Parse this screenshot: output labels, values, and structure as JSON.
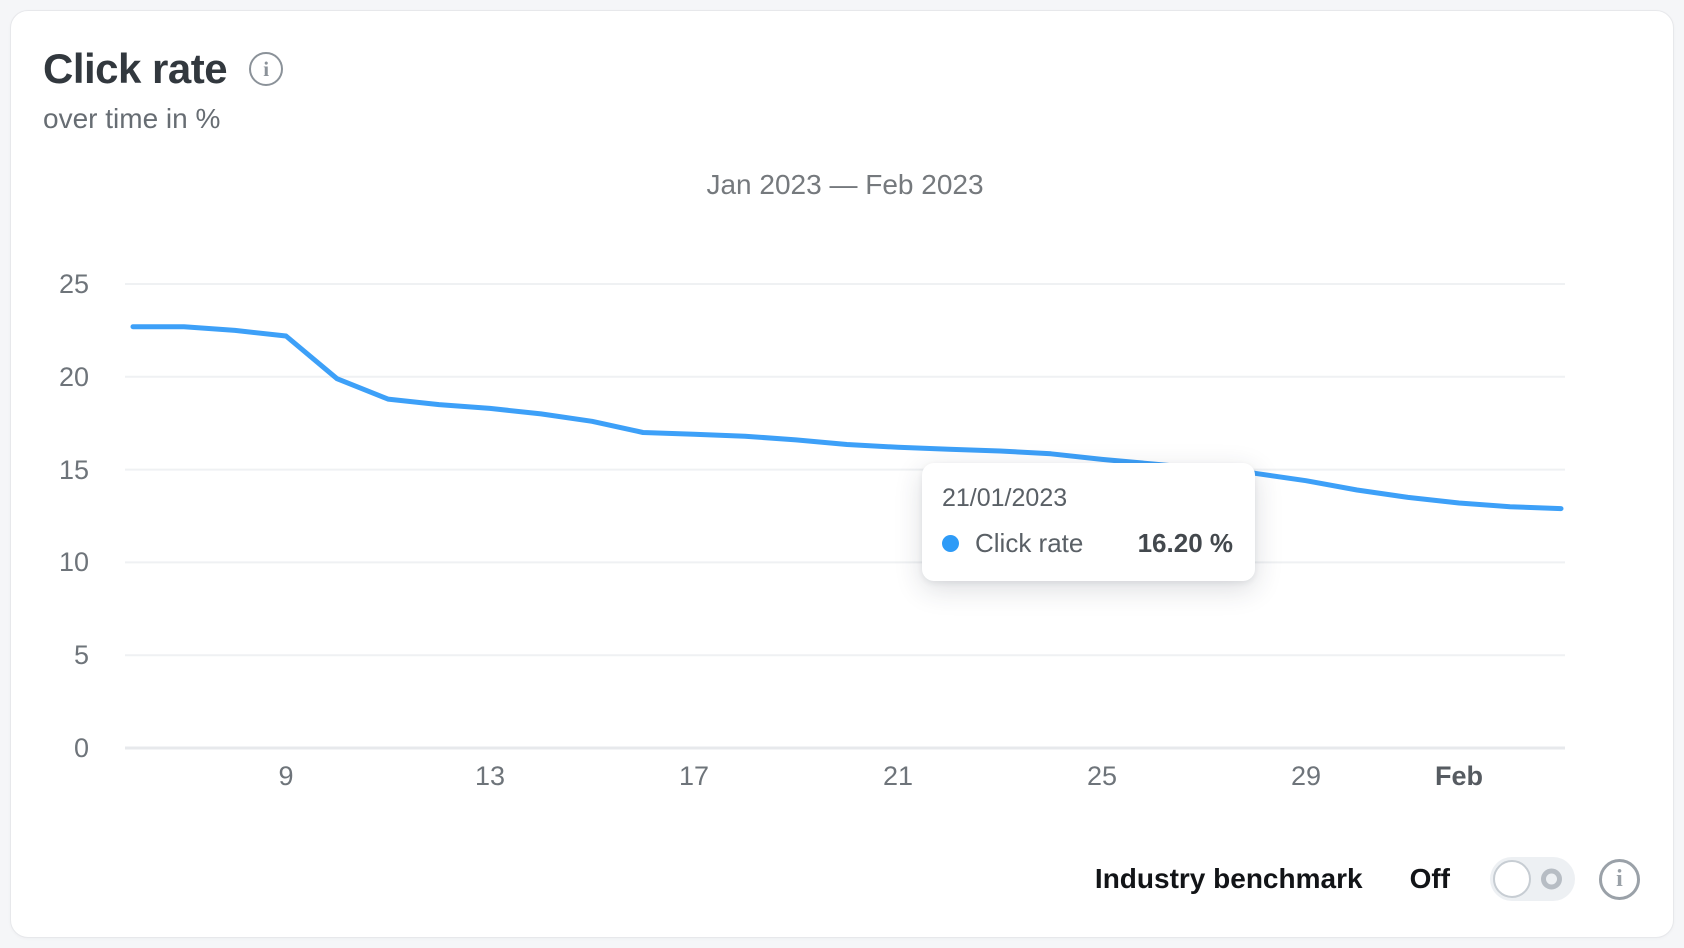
{
  "header": {
    "title": "Click rate",
    "subtitle": "over time in %",
    "info_icon": "info-icon"
  },
  "chart_data": {
    "type": "line",
    "title": "Jan 2023 — Feb 2023",
    "units": "%",
    "ylim": [
      0,
      25
    ],
    "yticks": [
      0,
      5,
      10,
      15,
      20,
      25
    ],
    "x_start_day": 6,
    "xticks": [
      {
        "label": "9",
        "day": 9,
        "bold": false
      },
      {
        "label": "13",
        "day": 13,
        "bold": false
      },
      {
        "label": "17",
        "day": 17,
        "bold": false
      },
      {
        "label": "21",
        "day": 21,
        "bold": false
      },
      {
        "label": "25",
        "day": 25,
        "bold": false
      },
      {
        "label": "29",
        "day": 29,
        "bold": false
      },
      {
        "label": "Feb",
        "day": 32,
        "bold": true
      }
    ],
    "categories": [
      "2023-01-06",
      "2023-01-07",
      "2023-01-08",
      "2023-01-09",
      "2023-01-10",
      "2023-01-11",
      "2023-01-12",
      "2023-01-13",
      "2023-01-14",
      "2023-01-15",
      "2023-01-16",
      "2023-01-17",
      "2023-01-18",
      "2023-01-19",
      "2023-01-20",
      "2023-01-21",
      "2023-01-22",
      "2023-01-23",
      "2023-01-24",
      "2023-01-25",
      "2023-01-26",
      "2023-01-27",
      "2023-01-28",
      "2023-01-29",
      "2023-01-30",
      "2023-01-31",
      "2023-02-01",
      "2023-02-02",
      "2023-02-03"
    ],
    "series": [
      {
        "name": "Click rate",
        "color": "#3da0f8",
        "values": [
          22.7,
          22.7,
          22.5,
          22.2,
          19.9,
          18.8,
          18.5,
          18.3,
          18.0,
          17.6,
          17.0,
          16.9,
          16.8,
          16.6,
          16.35,
          16.2,
          16.1,
          16.0,
          15.85,
          15.55,
          15.3,
          15.05,
          14.8,
          14.4,
          13.9,
          13.5,
          13.2,
          13.0,
          12.9
        ]
      }
    ],
    "grid": true,
    "legend_position": "none"
  },
  "tooltip": {
    "date": "21/01/2023",
    "series": "Click rate",
    "value": "16.20 %"
  },
  "benchmark": {
    "label": "Industry benchmark",
    "state": "Off",
    "toggle_on": false
  },
  "colors": {
    "line": "#3da0f8",
    "tooltip_dot": "#2e9bf7",
    "grid": "#eff1f3",
    "axis_zero_line": "#e7e9ec",
    "axis_text": "#6e747a",
    "title_text": "#32383e"
  }
}
